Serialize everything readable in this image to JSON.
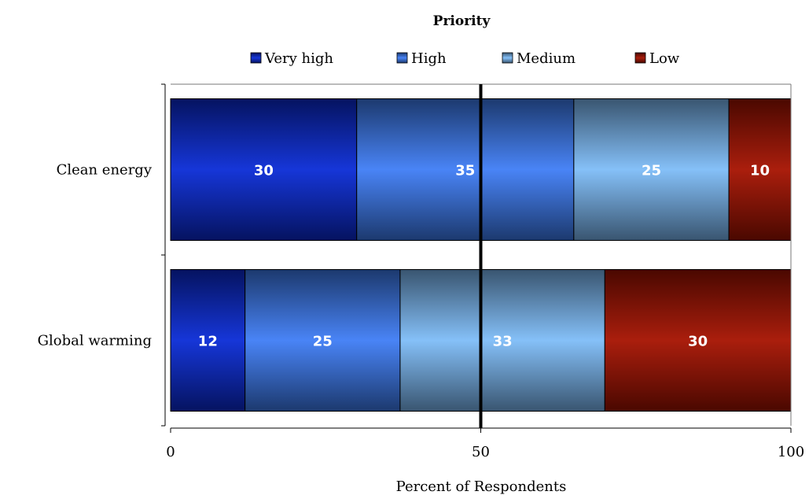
{
  "chart_data": {
    "type": "bar",
    "orientation": "horizontal",
    "stacked": true,
    "title": "Priority",
    "xlabel": "Percent of Respondents",
    "ylabel": "",
    "xlim": [
      0,
      100
    ],
    "xticks": [
      0,
      50,
      100
    ],
    "legend_position": "top",
    "grid": false,
    "categories": [
      "Clean energy",
      "Global warming"
    ],
    "series": [
      {
        "name": "Very high",
        "values": [
          30,
          12
        ],
        "color": "#0a2bd6"
      },
      {
        "name": "High",
        "values": [
          35,
          25
        ],
        "color": "#3f7ef5"
      },
      {
        "name": "Medium",
        "values": [
          25,
          33
        ],
        "color": "#7fbdf8"
      },
      {
        "name": "Low",
        "values": [
          10,
          30
        ],
        "color": "#a51200"
      }
    ]
  }
}
